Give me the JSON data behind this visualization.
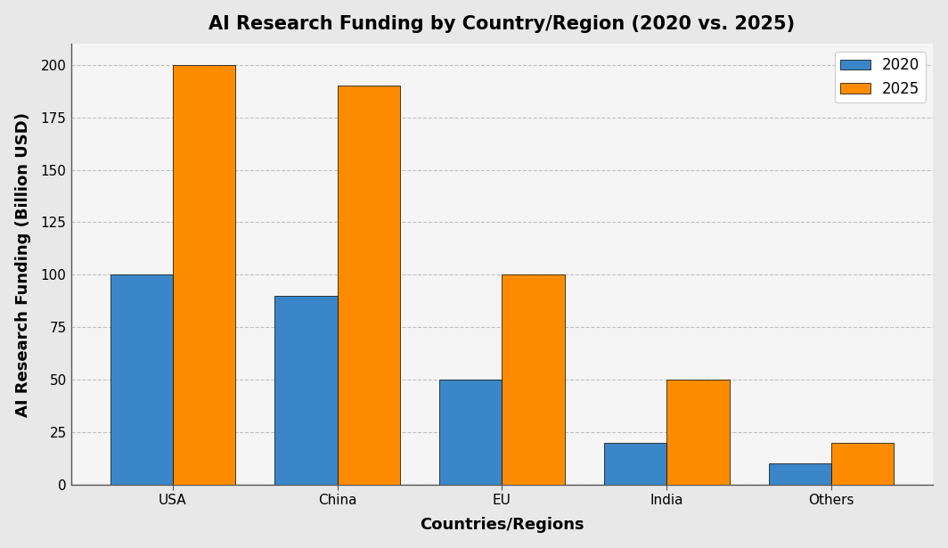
{
  "title": "AI Research Funding by Country/Region (2020 vs. 2025)",
  "xlabel": "Countries/Regions",
  "ylabel": "AI Research Funding (Billion USD)",
  "categories": [
    "USA",
    "China",
    "EU",
    "India",
    "Others"
  ],
  "values_2020": [
    100,
    90,
    50,
    20,
    10
  ],
  "values_2025": [
    200,
    190,
    100,
    50,
    20
  ],
  "color_2020": "#3a86c8",
  "color_2025": "#ff8c00",
  "legend_labels": [
    "2020",
    "2025"
  ],
  "ylim": [
    0,
    210
  ],
  "yticks": [
    0,
    25,
    50,
    75,
    100,
    125,
    150,
    175,
    200
  ],
  "bar_width": 0.38,
  "background_color": "#e8e8e8",
  "plot_area_color": "#f5f5f5",
  "grid_color": "#aaaaaa",
  "title_fontsize": 15,
  "axis_label_fontsize": 13,
  "tick_fontsize": 11,
  "legend_fontsize": 12,
  "title_fontweight": "bold"
}
